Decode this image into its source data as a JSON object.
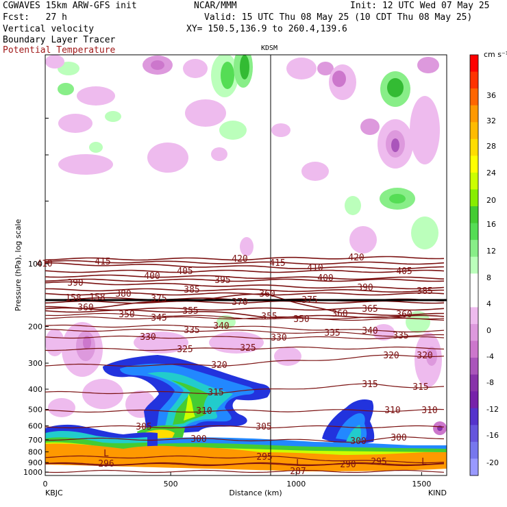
{
  "header": {
    "model": "CGWAVES 15km ARW-GFS init",
    "forecast": "Fcst:   27 h",
    "field1": "Vertical velocity",
    "field2": "Boundary Layer Tracer",
    "field3": "Potential Temperature",
    "org": "NCAR/MMM",
    "init": "Init: 12 UTC Wed 07 May 25",
    "valid": "Valid: 15 UTC Thu 08 May 25 (10 CDT Thu 08 May 25)",
    "xy": "XY= 150.5,136.9 to 260.4,139.6",
    "station_mid": "KDSM"
  },
  "chart_data": {
    "type": "heatmap",
    "xlabel": "Distance (km)",
    "ylabel": "Pressure (hPa), log scale",
    "xlim": [
      0,
      1600
    ],
    "x_ticks": [
      0,
      500,
      1000,
      1500
    ],
    "y_ticks": [
      100,
      200,
      300,
      400,
      500,
      600,
      700,
      800,
      900,
      1000
    ],
    "endpoint_left": "KBJC",
    "endpoint_right": "KIND",
    "colorbar": {
      "unit": "cm s⁻¹",
      "ticks": [
        36,
        32,
        28,
        24,
        20,
        16,
        12,
        8,
        4,
        0,
        -4,
        -8,
        -12,
        -16,
        -20
      ],
      "colors": [
        "#ff0000",
        "#ff3300",
        "#ff6600",
        "#ff9900",
        "#ffbb00",
        "#ffdd00",
        "#ffff00",
        "#ccff00",
        "#88ee00",
        "#44cc33",
        "#55dd55",
        "#88ee88",
        "#bbffbb",
        "#ffffff",
        "#ffffff",
        "#eebbee",
        "#dd99dd",
        "#cc77cc",
        "#aa55bb",
        "#8833aa",
        "#7722aa",
        "#5533cc",
        "#6655dd",
        "#7777ee",
        "#9999ff"
      ]
    },
    "isentropes": [
      {
        "value": 420,
        "labels": [
          [
            350,
            382
          ],
          [
            520,
            380
          ]
        ]
      },
      {
        "value": 415,
        "labels": [
          [
            150,
            386
          ],
          [
            405,
            388
          ]
        ]
      },
      {
        "value": 410,
        "labels": [
          [
            65,
            389
          ],
          [
            460,
            395
          ]
        ]
      },
      {
        "value": 405,
        "labels": [
          [
            270,
            400
          ],
          [
            590,
            400
          ]
        ]
      },
      {
        "value": 400,
        "labels": [
          [
            222,
            407
          ],
          [
            475,
            410
          ]
        ]
      },
      {
        "value": 395,
        "labels": [
          [
            325,
            413
          ]
        ]
      },
      {
        "value": 390,
        "labels": [
          [
            110,
            417
          ],
          [
            533,
            424
          ]
        ]
      },
      {
        "value": 385,
        "labels": [
          [
            280,
            427
          ],
          [
            620,
            429
          ]
        ]
      },
      {
        "value": 380,
        "labels": [
          [
            180,
            433
          ]
        ]
      },
      {
        "value": 375,
        "labels": [
          [
            232,
            440
          ],
          [
            452,
            442
          ]
        ]
      },
      {
        "value": 370,
        "labels": [
          [
            350,
            445
          ]
        ]
      },
      {
        "value": 360,
        "labels": [
          [
            125,
            453
          ],
          [
            390,
            433
          ],
          [
            496,
            462
          ],
          [
            590,
            463
          ]
        ]
      },
      {
        "value": 365,
        "labels": [
          [
            540,
            455
          ]
        ]
      },
      {
        "value": 355,
        "labels": [
          [
            278,
            458
          ],
          [
            393,
            466
          ]
        ]
      },
      {
        "value": 350,
        "labels": [
          [
            185,
            463
          ],
          [
            440,
            470
          ]
        ]
      },
      {
        "value": 345,
        "labels": [
          [
            232,
            468
          ]
        ]
      },
      {
        "value": 340,
        "labels": [
          [
            323,
            480
          ],
          [
            540,
            487
          ]
        ]
      },
      {
        "value": 335,
        "labels": [
          [
            280,
            486
          ],
          [
            485,
            490
          ],
          [
            585,
            494
          ]
        ]
      },
      {
        "value": 330,
        "labels": [
          [
            216,
            496
          ],
          [
            407,
            497
          ]
        ]
      },
      {
        "value": 325,
        "labels": [
          [
            270,
            514
          ],
          [
            362,
            512
          ]
        ]
      },
      {
        "value": 320,
        "labels": [
          [
            320,
            537
          ],
          [
            571,
            523
          ],
          [
            620,
            523
          ]
        ]
      },
      {
        "value": 315,
        "labels": [
          [
            315,
            577
          ],
          [
            540,
            565
          ],
          [
            614,
            569
          ]
        ]
      },
      {
        "value": 310,
        "labels": [
          [
            298,
            604
          ],
          [
            573,
            603
          ],
          [
            627,
            603
          ]
        ]
      },
      {
        "value": 305,
        "labels": [
          [
            210,
            627
          ],
          [
            385,
            627
          ]
        ]
      },
      {
        "value": 300,
        "labels": [
          [
            290,
            645
          ],
          [
            523,
            648
          ],
          [
            582,
            643
          ]
        ]
      },
      {
        "value": 295,
        "labels": [
          [
            386,
            671
          ],
          [
            553,
            678
          ]
        ]
      },
      {
        "value": 290,
        "labels": [
          [
            508,
            682
          ]
        ]
      },
      {
        "value": 287,
        "labels": [
          [
            435,
            692
          ]
        ]
      },
      {
        "value": 296,
        "labels": [
          [
            155,
            681
          ]
        ]
      },
      {
        "value": 158,
        "labels": [
          [
            107,
            439
          ],
          [
            142,
            438
          ]
        ]
      }
    ]
  }
}
